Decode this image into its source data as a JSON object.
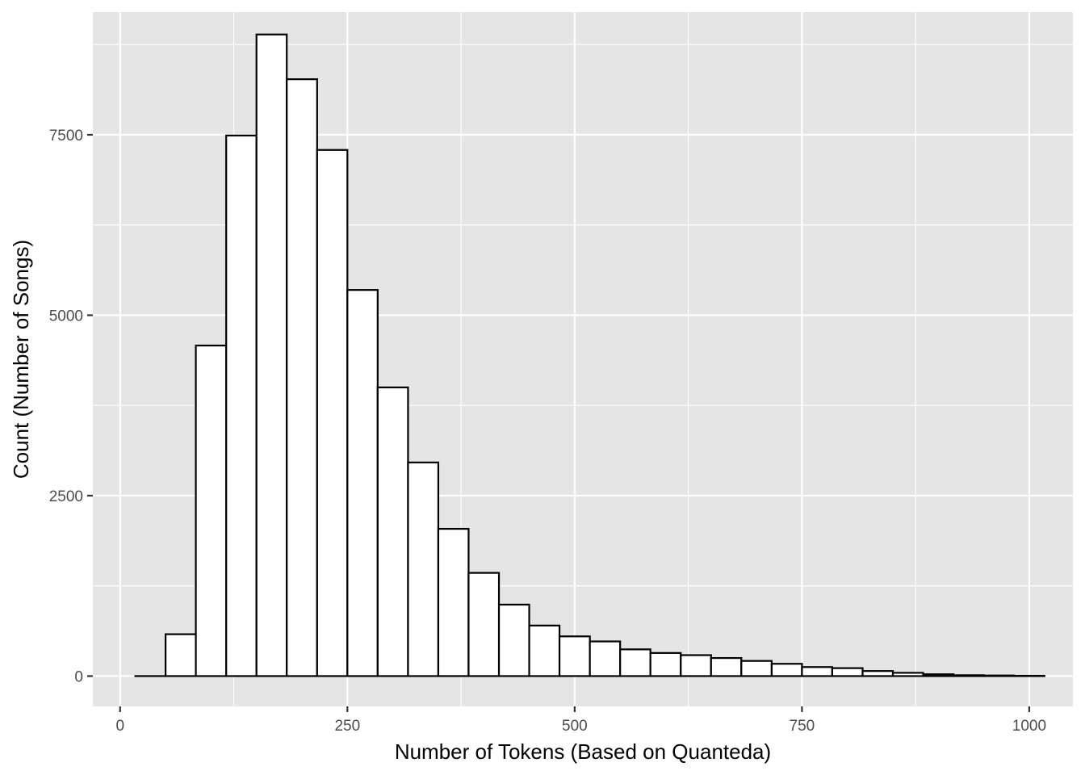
{
  "chart_data": {
    "type": "bar",
    "subtype": "histogram",
    "xlabel": "Number of Tokens (Based on Quanteda)",
    "ylabel": "Count (Number of Songs)",
    "xlim": [
      -30,
      1048
    ],
    "ylim": [
      -420,
      9200
    ],
    "x_ticks": [
      0,
      250,
      500,
      750,
      1000
    ],
    "x_tick_labels": [
      "0",
      "250",
      "500",
      "750",
      "1000"
    ],
    "y_ticks": [
      0,
      2500,
      5000,
      7500
    ],
    "y_tick_labels": [
      "0",
      "2500",
      "5000",
      "7500"
    ],
    "grid": true,
    "bin_width": 33.33,
    "bins": [
      {
        "x0": 16.7,
        "x1": 50.0,
        "count": 0
      },
      {
        "x0": 50.0,
        "x1": 83.3,
        "count": 580
      },
      {
        "x0": 83.3,
        "x1": 116.7,
        "count": 4580
      },
      {
        "x0": 116.7,
        "x1": 150.0,
        "count": 7490
      },
      {
        "x0": 150.0,
        "x1": 183.3,
        "count": 8890
      },
      {
        "x0": 183.3,
        "x1": 216.7,
        "count": 8270
      },
      {
        "x0": 216.7,
        "x1": 250.0,
        "count": 7290
      },
      {
        "x0": 250.0,
        "x1": 283.3,
        "count": 5350
      },
      {
        "x0": 283.3,
        "x1": 316.7,
        "count": 4000
      },
      {
        "x0": 316.7,
        "x1": 350.0,
        "count": 2960
      },
      {
        "x0": 350.0,
        "x1": 383.3,
        "count": 2040
      },
      {
        "x0": 383.3,
        "x1": 416.7,
        "count": 1430
      },
      {
        "x0": 416.7,
        "x1": 450.0,
        "count": 990
      },
      {
        "x0": 450.0,
        "x1": 483.3,
        "count": 700
      },
      {
        "x0": 483.3,
        "x1": 516.7,
        "count": 550
      },
      {
        "x0": 516.7,
        "x1": 550.0,
        "count": 480
      },
      {
        "x0": 550.0,
        "x1": 583.3,
        "count": 370
      },
      {
        "x0": 583.3,
        "x1": 616.7,
        "count": 320
      },
      {
        "x0": 616.7,
        "x1": 650.0,
        "count": 290
      },
      {
        "x0": 650.0,
        "x1": 683.3,
        "count": 250
      },
      {
        "x0": 683.3,
        "x1": 716.7,
        "count": 210
      },
      {
        "x0": 716.7,
        "x1": 750.0,
        "count": 170
      },
      {
        "x0": 750.0,
        "x1": 783.3,
        "count": 125
      },
      {
        "x0": 783.3,
        "x1": 816.7,
        "count": 110
      },
      {
        "x0": 816.7,
        "x1": 850.0,
        "count": 70
      },
      {
        "x0": 850.0,
        "x1": 883.3,
        "count": 45
      },
      {
        "x0": 883.3,
        "x1": 916.7,
        "count": 25
      },
      {
        "x0": 916.7,
        "x1": 950.0,
        "count": 12
      },
      {
        "x0": 950.0,
        "x1": 983.3,
        "count": 8
      },
      {
        "x0": 983.3,
        "x1": 1016.7,
        "count": 4
      }
    ]
  }
}
